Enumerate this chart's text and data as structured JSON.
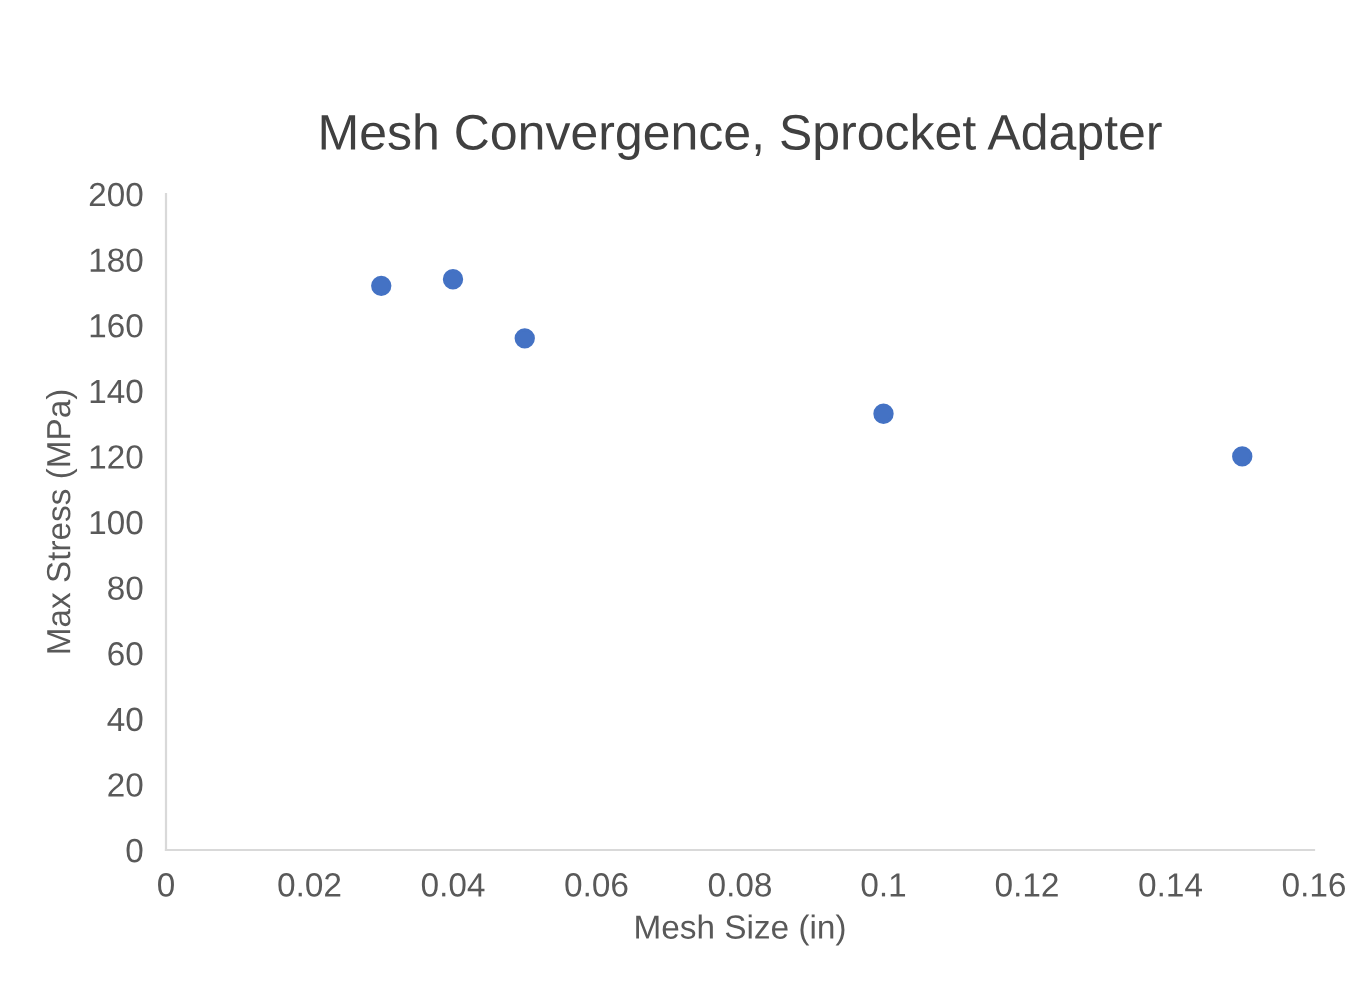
{
  "chart_data": {
    "type": "scatter",
    "title": "Mesh Convergence, Sprocket Adapter",
    "xlabel": "Mesh Size (in)",
    "ylabel": "Max Stress (MPa)",
    "x": [
      0.03,
      0.04,
      0.05,
      0.1,
      0.15
    ],
    "series": [
      {
        "color": "#4472c4",
        "values": [
          172,
          174,
          156,
          133,
          120
        ]
      }
    ],
    "xlim": [
      0,
      0.16
    ],
    "xticks": [
      0,
      0.02,
      0.04,
      0.06,
      0.08,
      0.1,
      0.12,
      0.14,
      0.16
    ],
    "ylim": [
      0,
      200
    ],
    "yticks": [
      0,
      20,
      40,
      60,
      80,
      100,
      120,
      140,
      160,
      180,
      200
    ],
    "grid": false,
    "marker": "circle"
  }
}
